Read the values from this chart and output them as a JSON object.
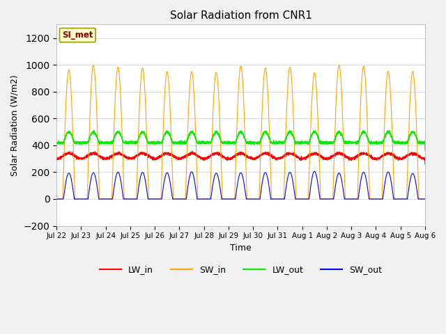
{
  "title": "Solar Radiation from CNR1",
  "xlabel": "Time",
  "ylabel": "Solar Radiation (W/m2)",
  "ylim": [
    -200,
    1300
  ],
  "yticks": [
    -200,
    0,
    200,
    400,
    600,
    800,
    1000,
    1200
  ],
  "date_labels": [
    "Jul 22",
    "Jul 23",
    "Jul 24",
    "Jul 25",
    "Jul 26",
    "Jul 27",
    "Jul 28",
    "Jul 29",
    "Jul 30",
    "Jul 31",
    "Aug 1",
    "Aug 2",
    "Aug 3",
    "Aug 4",
    "Aug 5",
    "Aug 6"
  ],
  "annotation_text": "SI_met",
  "annotation_color": "#8B0000",
  "annotation_bg": "#FFFFCC",
  "annotation_border": "#999900",
  "colors": {
    "LW_in": "#FF0000",
    "SW_in": "#FFA500",
    "LW_out": "#00EE00",
    "SW_out": "#0000FF"
  },
  "figure_bg": "#F0F0F0",
  "plot_bg": "#FFFFFF",
  "grid_color": "#DDDDDD",
  "num_days": 15,
  "points_per_day": 288,
  "SW_in_peak": 970,
  "SW_out_peak": 200,
  "LW_in_base": 320,
  "LW_out_base": 420
}
